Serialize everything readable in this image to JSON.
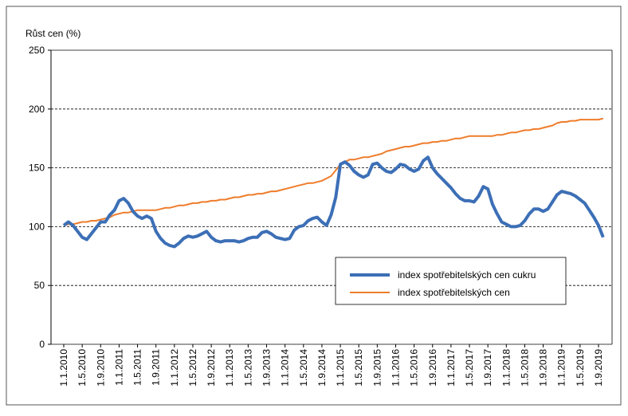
{
  "chart_data": {
    "type": "line",
    "ylabel": "Růst cen (%)",
    "categories": [
      "1.1.2010",
      null,
      null,
      null,
      "1.5.2010",
      null,
      null,
      null,
      "1.9.2010",
      null,
      null,
      null,
      "1.1.2011",
      null,
      null,
      null,
      "1.5.2011",
      null,
      null,
      null,
      "1.9.2011",
      null,
      null,
      null,
      "1.1.2012",
      null,
      null,
      null,
      "1.5.2012",
      null,
      null,
      null,
      "1.9.2012",
      null,
      null,
      null,
      "1.1.2013",
      null,
      null,
      null,
      "1.5.2013",
      null,
      null,
      null,
      "1.9.2013",
      null,
      null,
      null,
      "1.1.2014",
      null,
      null,
      null,
      "1.5.2014",
      null,
      null,
      null,
      "1.9.2014",
      null,
      null,
      null,
      "1.1.2015",
      null,
      null,
      null,
      "1.5.2015",
      null,
      null,
      null,
      "1.9.2015",
      null,
      null,
      null,
      "1.1.2016",
      null,
      null,
      null,
      "1.5.2016",
      null,
      null,
      null,
      "1.9.2016",
      null,
      null,
      null,
      "1.1.2017",
      null,
      null,
      null,
      "1.5.2017",
      null,
      null,
      null,
      "1.9.2017",
      null,
      null,
      null,
      "1.1.2018",
      null,
      null,
      null,
      "1.5.2018",
      null,
      null,
      null,
      "1.9.2018",
      null,
      null,
      null,
      "1.1.2019",
      null,
      null,
      null,
      "1.5.2019",
      null,
      null,
      null,
      "1.9.2019",
      null
    ],
    "series": [
      {
        "name": "index spotřebitelských cen cukru",
        "color": "#3c6fb6",
        "values": [
          101,
          104,
          101,
          96,
          91,
          89,
          94,
          99,
          104,
          104,
          110,
          114,
          122,
          124,
          120,
          113,
          109,
          107,
          109,
          107,
          96,
          90,
          86,
          84,
          83,
          86,
          90,
          92,
          91,
          92,
          94,
          96,
          91,
          88,
          87,
          88,
          88,
          88,
          87,
          88,
          90,
          91,
          91,
          95,
          96,
          94,
          91,
          90,
          89,
          90,
          97,
          100,
          101,
          105,
          107,
          108,
          104,
          101,
          110,
          125,
          153,
          155,
          152,
          147,
          144,
          142,
          144,
          153,
          154,
          150,
          147,
          146,
          149,
          153,
          152,
          149,
          147,
          149,
          156,
          159,
          150,
          145,
          141,
          137,
          133,
          128,
          124,
          122,
          122,
          121,
          126,
          134,
          132,
          119,
          111,
          104,
          102,
          100,
          100,
          101,
          105,
          111,
          115,
          115,
          113,
          115,
          121,
          127,
          130,
          129,
          128,
          126,
          123,
          120,
          114,
          108,
          101,
          91
        ]
      },
      {
        "name": "index spotřebitelských cen",
        "color": "#ee7d2c",
        "values": [
          101,
          102,
          102,
          103,
          104,
          104,
          105,
          105,
          106,
          107,
          108,
          110,
          111,
          112,
          112,
          113,
          114,
          114,
          114,
          114,
          114,
          115,
          116,
          116,
          117,
          118,
          118,
          119,
          120,
          120,
          121,
          121,
          122,
          122,
          123,
          123,
          124,
          125,
          125,
          126,
          127,
          127,
          128,
          128,
          129,
          130,
          130,
          131,
          132,
          133,
          134,
          135,
          136,
          137,
          137,
          138,
          139,
          141,
          143,
          148,
          153,
          155,
          157,
          157,
          158,
          159,
          159,
          160,
          161,
          162,
          164,
          165,
          166,
          167,
          168,
          168,
          169,
          170,
          171,
          171,
          172,
          172,
          173,
          173,
          174,
          175,
          175,
          176,
          177,
          177,
          177,
          177,
          177,
          177,
          178,
          178,
          179,
          180,
          180,
          181,
          182,
          182,
          183,
          183,
          184,
          185,
          186,
          188,
          189,
          189,
          190,
          190,
          191,
          191,
          191,
          191,
          191,
          192
        ]
      }
    ],
    "ylim": [
      0,
      250
    ],
    "yticks": [
      0,
      50,
      100,
      150,
      200,
      250
    ],
    "grid": true,
    "legend": "lower right"
  }
}
